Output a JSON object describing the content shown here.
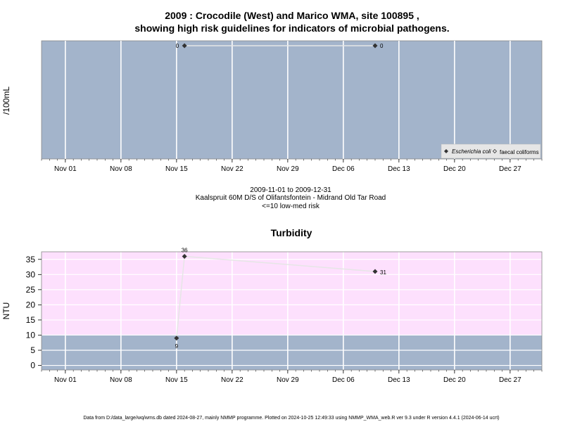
{
  "header": {
    "title_line1": "2009 : Crocodile (West) and Marico WMA, site 100895 ,",
    "title_line2": "showing high risk guidelines for indicators of microbial pathogens."
  },
  "middle_text": {
    "date_range": "2009-11-01 to 2009-12-31",
    "site": "Kaalspruit 60M D/S of Olifantsfontein - Midrand Old Tar Road",
    "risk": "<=10 low-med risk"
  },
  "footer": {
    "note": "Data from D:/data_large/wq/wms.db dated 2024-08-27, mainly NMMP programme. Plotted on 2024-10-25 12:49:33 using NMMP_WMA_web.R ver 9.3 under R version 4.4.1 (2024-06-14 ucrt)"
  },
  "colors": {
    "panel_blue": "#a3b4cb",
    "panel_pink": "#fde0fd",
    "grid": "#ffffff",
    "line": "#e6e6e6",
    "point": "#333333"
  },
  "chart_data": [
    {
      "type": "line",
      "ylabel": "/100mL",
      "grid": true,
      "legend_position": "bottom-right",
      "x_ticks": [
        "Nov 01",
        "Nov 08",
        "Nov 15",
        "Nov 22",
        "Nov 29",
        "Dec 06",
        "Dec 13",
        "Dec 20",
        "Dec 27"
      ],
      "x_tick_dates": [
        "2009-11-01",
        "2009-11-08",
        "2009-11-15",
        "2009-11-22",
        "2009-11-29",
        "2009-12-06",
        "2009-12-13",
        "2009-12-20",
        "2009-12-27"
      ],
      "xlim": [
        "2009-10-29",
        "2009-12-31"
      ],
      "series": [
        {
          "name": "Escherichia coli",
          "marker": "diamond",
          "x": [
            "2009-11-16",
            "2009-12-10"
          ],
          "y": [
            0,
            0
          ],
          "labels": [
            "0",
            "0"
          ]
        },
        {
          "name": "faecal coliforms",
          "marker": "diamond-open",
          "x": [],
          "y": []
        }
      ]
    },
    {
      "type": "line",
      "title": "Turbidity",
      "ylabel": "NTU",
      "grid": true,
      "ylim": [
        -1.5,
        37.5
      ],
      "y_ticks": [
        0,
        5,
        10,
        15,
        20,
        25,
        30,
        35
      ],
      "bands": [
        {
          "from": -1.5,
          "to": 10,
          "color": "#a3b4cb"
        },
        {
          "from": 10,
          "to": 37.5,
          "color": "#fde0fd"
        }
      ],
      "x_ticks": [
        "Nov 01",
        "Nov 08",
        "Nov 15",
        "Nov 22",
        "Nov 29",
        "Dec 06",
        "Dec 13",
        "Dec 20",
        "Dec 27"
      ],
      "x_tick_dates": [
        "2009-11-01",
        "2009-11-08",
        "2009-11-15",
        "2009-11-22",
        "2009-11-29",
        "2009-12-06",
        "2009-12-13",
        "2009-12-20",
        "2009-12-27"
      ],
      "xlim": [
        "2009-10-29",
        "2009-12-31"
      ],
      "series": [
        {
          "x": [
            "2009-11-15",
            "2009-11-16",
            "2009-12-10"
          ],
          "y": [
            9,
            36,
            31
          ],
          "labels": [
            "9",
            "36",
            "31"
          ]
        }
      ]
    }
  ]
}
